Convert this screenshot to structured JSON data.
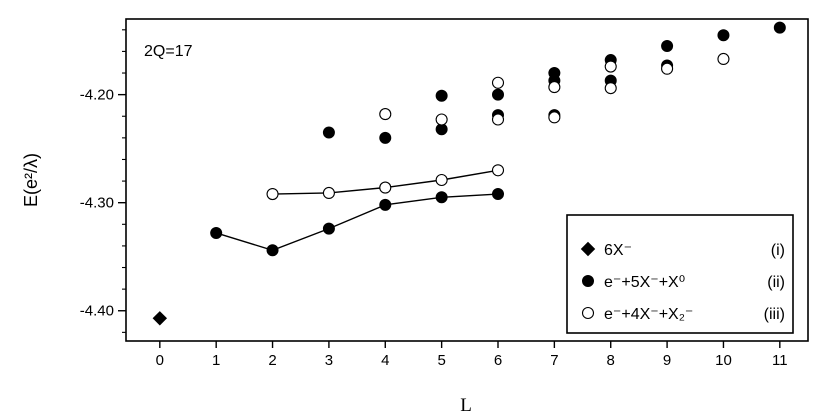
{
  "chart_data": {
    "type": "scatter",
    "annotation": "2Q=17",
    "xlabel": "L",
    "ylabel": "E(e²/λ)",
    "xlim": [
      -0.6,
      11.5
    ],
    "ylim": [
      -4.428,
      -4.13
    ],
    "x_ticks": [
      0,
      1,
      2,
      3,
      4,
      5,
      6,
      7,
      8,
      9,
      10,
      11
    ],
    "y_ticks": [
      {
        "value": -4.2,
        "label": "-4.20"
      },
      {
        "value": -4.3,
        "label": "-4.30"
      },
      {
        "value": -4.4,
        "label": "-4.40"
      }
    ],
    "legend_position": "bottom-right",
    "series": [
      {
        "name": "6X⁻",
        "tag": "(i)",
        "marker": "diamond",
        "connected": false,
        "points": [
          [
            0,
            -4.407
          ]
        ]
      },
      {
        "name": "e⁻+5X⁻+X⁰",
        "tag": "(ii)",
        "marker": "filled-circle",
        "connected": false,
        "points": [
          [
            3,
            -4.235
          ],
          [
            4,
            -4.24
          ],
          [
            5,
            -4.201
          ],
          [
            5,
            -4.232
          ],
          [
            6,
            -4.2
          ],
          [
            6,
            -4.219
          ],
          [
            7,
            -4.18
          ],
          [
            7,
            -4.187
          ],
          [
            7,
            -4.219
          ],
          [
            8,
            -4.168
          ],
          [
            8,
            -4.187
          ],
          [
            9,
            -4.155
          ],
          [
            9,
            -4.173
          ],
          [
            10,
            -4.145
          ],
          [
            11,
            -4.138
          ]
        ]
      },
      {
        "name": "e⁻+4X⁻+X₂⁻",
        "tag": "(iii)",
        "marker": "open-circle",
        "connected": false,
        "points": [
          [
            4,
            -4.218
          ],
          [
            5,
            -4.223
          ],
          [
            6,
            -4.189
          ],
          [
            6,
            -4.223
          ],
          [
            7,
            -4.193
          ],
          [
            7,
            -4.221
          ],
          [
            8,
            -4.174
          ],
          [
            8,
            -4.194
          ],
          [
            9,
            -4.176
          ],
          [
            10,
            -4.167
          ]
        ]
      },
      {
        "name": "",
        "marker": "filled-circle",
        "connected": true,
        "points": [
          [
            1,
            -4.328
          ],
          [
            2,
            -4.344
          ],
          [
            3,
            -4.324
          ],
          [
            4,
            -4.302
          ],
          [
            5,
            -4.295
          ],
          [
            6,
            -4.292
          ]
        ]
      },
      {
        "name": "",
        "marker": "open-circle",
        "connected": true,
        "points": [
          [
            2,
            -4.292
          ],
          [
            3,
            -4.291
          ],
          [
            4,
            -4.286
          ],
          [
            5,
            -4.279
          ],
          [
            6,
            -4.27
          ]
        ]
      }
    ]
  }
}
